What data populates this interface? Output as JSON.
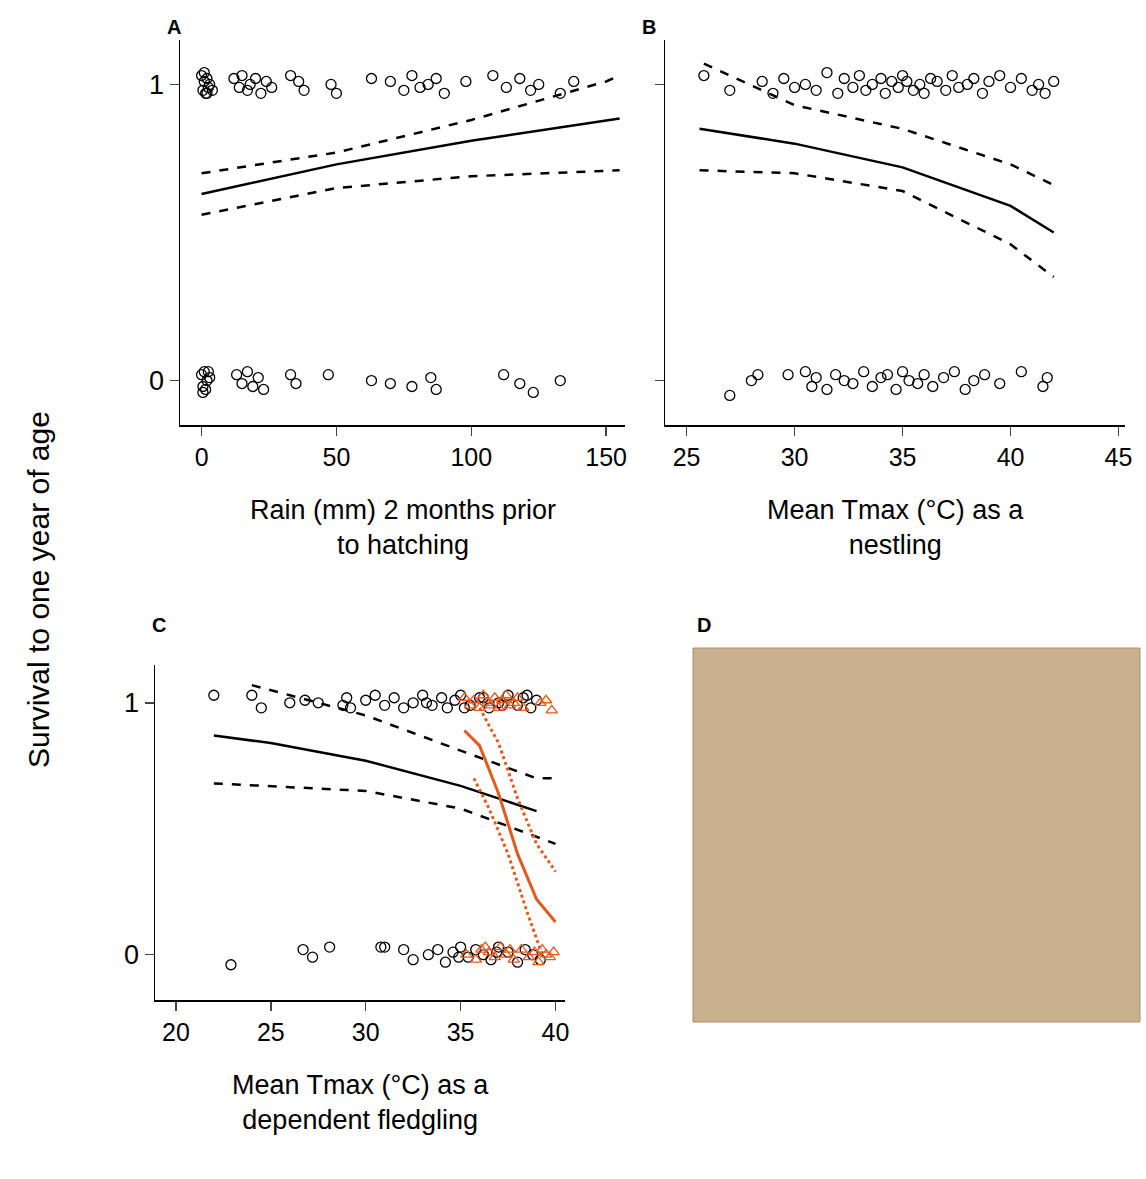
{
  "ylabel": "Survival to one year of age",
  "photo": {
    "panel": "D"
  },
  "chart_data": [
    {
      "panel": "A",
      "type": "scatter",
      "xlabel": "Rain (mm) 2 months prior to hatching",
      "xlim": [
        -8,
        157
      ],
      "xticks": [
        0,
        50,
        100,
        150
      ],
      "ylim": [
        -0.15,
        1.15
      ],
      "yticks": [
        0,
        1
      ],
      "grid": false,
      "series": [
        {
          "type": "scatter",
          "marker": "circle-open",
          "color": "#000000",
          "x": [
            0,
            0.5,
            1,
            1.5,
            2,
            2.5,
            3,
            4,
            1,
            2,
            12,
            14,
            15,
            17,
            18,
            20,
            22,
            24,
            26,
            33,
            36,
            38,
            48,
            50,
            63,
            70,
            75,
            78,
            81,
            84,
            87,
            90,
            98,
            108,
            113,
            118,
            122,
            125,
            133,
            138
          ],
          "values": [
            1.03,
            0.98,
            1.01,
            0.97,
            1.02,
            0.99,
            1.0,
            0.98,
            1.04,
            0.97,
            1.02,
            0.99,
            1.03,
            0.98,
            1.0,
            1.02,
            0.97,
            1.01,
            0.99,
            1.03,
            1.01,
            0.98,
            1.0,
            0.97,
            1.02,
            1.01,
            0.98,
            1.03,
            0.99,
            1.0,
            1.02,
            0.97,
            1.01,
            1.03,
            0.99,
            1.02,
            0.98,
            1.0,
            0.97,
            1.01
          ]
        },
        {
          "type": "scatter",
          "marker": "circle-open",
          "color": "#000000",
          "x": [
            0,
            0.5,
            1,
            1.5,
            2,
            3,
            0.5,
            2.5,
            13,
            15,
            17,
            19,
            21,
            23,
            33,
            35,
            47,
            63,
            70,
            78,
            85,
            87,
            112,
            118,
            123,
            133
          ],
          "values": [
            0.02,
            -0.02,
            0.03,
            -0.03,
            0.0,
            0.01,
            -0.04,
            0.03,
            0.02,
            -0.01,
            0.03,
            -0.02,
            0.01,
            -0.03,
            0.02,
            -0.01,
            0.02,
            0.0,
            -0.01,
            -0.02,
            0.01,
            -0.03,
            0.02,
            -0.01,
            -0.04,
            0.0
          ]
        },
        {
          "type": "line",
          "line_style": "solid",
          "color": "#000000",
          "x": [
            0,
            50,
            100,
            150,
            155
          ],
          "values": [
            0.63,
            0.73,
            0.81,
            0.88,
            0.885
          ]
        },
        {
          "type": "line",
          "line_style": "dashed",
          "color": "#000000",
          "x": [
            0,
            50,
            100,
            150,
            155
          ],
          "values": [
            0.7,
            0.77,
            0.88,
            1.01,
            1.03
          ]
        },
        {
          "type": "line",
          "line_style": "dashed",
          "color": "#000000",
          "x": [
            0,
            50,
            100,
            150,
            155
          ],
          "values": [
            0.56,
            0.65,
            0.69,
            0.71,
            0.71
          ]
        }
      ]
    },
    {
      "panel": "B",
      "type": "scatter",
      "xlabel": "Mean Tmax (°C) as a nestling",
      "tick_labels": "x",
      "xlim": [
        24,
        45.3
      ],
      "xticks": [
        25,
        30,
        35,
        40,
        45
      ],
      "ylim": [
        -0.15,
        1.15
      ],
      "yticks": [
        0,
        1
      ],
      "grid": false,
      "series": [
        {
          "type": "scatter",
          "marker": "circle-open",
          "color": "#000000",
          "x": [
            25.8,
            27,
            28.5,
            29,
            29.5,
            30,
            30.5,
            31,
            31.5,
            32,
            32.3,
            32.7,
            33,
            33.3,
            33.6,
            34,
            34.2,
            34.5,
            34.8,
            35,
            35.2,
            35.5,
            35.8,
            36,
            36.3,
            36.6,
            37,
            37.3,
            37.6,
            38,
            38.3,
            38.7,
            39,
            39.5,
            40,
            40.5,
            41,
            41.3,
            41.6,
            42
          ],
          "values": [
            1.03,
            0.98,
            1.01,
            0.97,
            1.02,
            0.99,
            1.0,
            0.98,
            1.04,
            0.97,
            1.02,
            0.99,
            1.03,
            0.98,
            1.0,
            1.02,
            0.97,
            1.01,
            0.99,
            1.03,
            1.01,
            0.98,
            1.0,
            0.97,
            1.02,
            1.01,
            0.98,
            1.03,
            0.99,
            1.0,
            1.02,
            0.97,
            1.01,
            1.03,
            0.99,
            1.02,
            0.98,
            1.0,
            0.97,
            1.01
          ]
        },
        {
          "type": "scatter",
          "marker": "circle-open",
          "color": "#000000",
          "x": [
            27,
            28,
            28.3,
            29.7,
            30.5,
            30.8,
            31,
            31.5,
            31.9,
            32.3,
            32.7,
            33.2,
            33.6,
            34,
            34.3,
            34.7,
            35,
            35.3,
            35.7,
            36,
            36.4,
            36.9,
            37.4,
            37.9,
            38.3,
            38.8,
            39.5,
            40.5,
            41.5,
            41.7
          ],
          "values": [
            -0.05,
            0.0,
            0.02,
            0.02,
            0.03,
            -0.02,
            0.01,
            -0.03,
            0.02,
            0.0,
            -0.01,
            0.03,
            -0.02,
            0.01,
            0.02,
            -0.03,
            0.03,
            0.0,
            -0.01,
            0.02,
            -0.02,
            0.01,
            0.03,
            -0.03,
            0.0,
            0.02,
            -0.01,
            0.03,
            -0.02,
            0.01
          ]
        },
        {
          "type": "line",
          "line_style": "solid",
          "color": "#000000",
          "x": [
            25.6,
            30,
            35,
            40,
            42
          ],
          "values": [
            0.85,
            0.8,
            0.72,
            0.59,
            0.5
          ]
        },
        {
          "type": "line",
          "line_style": "dashed",
          "color": "#000000",
          "x": [
            25.8,
            30,
            35,
            40,
            42
          ],
          "values": [
            1.07,
            0.93,
            0.85,
            0.73,
            0.66
          ]
        },
        {
          "type": "line",
          "line_style": "dashed",
          "color": "#000000",
          "x": [
            25.6,
            30,
            35,
            40,
            42
          ],
          "values": [
            0.71,
            0.7,
            0.64,
            0.46,
            0.35
          ]
        }
      ]
    },
    {
      "panel": "C",
      "type": "scatter",
      "xlabel": "Mean Tmax (°C) as a dependent fledgling",
      "xlim": [
        18.9,
        40.5
      ],
      "xticks": [
        20,
        25,
        30,
        35,
        40
      ],
      "ylim": [
        -0.18,
        1.15
      ],
      "yticks": [
        0,
        1
      ],
      "grid": false,
      "series": [
        {
          "type": "scatter",
          "marker": "circle-open",
          "color": "#000000",
          "x": [
            22,
            24,
            24.5,
            26,
            26.8,
            27.5,
            28.8,
            29,
            29.2,
            30,
            30.5,
            31,
            31.5,
            32,
            32.5,
            33,
            33.5,
            34,
            34.3,
            34.7,
            35,
            35.5,
            36,
            36.5,
            37,
            37.5,
            38,
            38.3,
            38.7,
            39,
            33.2,
            35.2,
            36.2,
            37.2,
            38.5
          ],
          "values": [
            1.03,
            1.03,
            0.98,
            1.0,
            1.01,
            1.0,
            0.99,
            1.02,
            0.98,
            1.01,
            1.03,
            0.99,
            1.02,
            0.98,
            1.0,
            1.03,
            0.99,
            1.02,
            0.98,
            1.01,
            1.03,
            0.99,
            1.02,
            0.98,
            1.0,
            1.03,
            0.99,
            1.02,
            0.98,
            1.01,
            1.0,
            0.98,
            1.02,
            0.99,
            1.03
          ]
        },
        {
          "type": "scatter",
          "marker": "circle-open",
          "color": "#000000",
          "x": [
            22.9,
            26.7,
            27.2,
            28.1,
            30.8,
            31,
            32,
            32.5,
            33.3,
            33.8,
            34.2,
            34.6,
            35,
            35.4,
            35.8,
            36.2,
            36.6,
            37,
            37.5,
            38,
            38.4,
            38.8,
            39.2,
            36.9,
            34.9
          ],
          "values": [
            -0.04,
            0.02,
            -0.01,
            0.03,
            0.03,
            0.03,
            0.02,
            -0.02,
            0.0,
            0.02,
            -0.03,
            0.01,
            0.03,
            -0.01,
            0.02,
            0.0,
            -0.02,
            0.03,
            0.01,
            -0.03,
            0.02,
            0.0,
            -0.02,
            0.01,
            -0.01
          ]
        },
        {
          "type": "scatter",
          "marker": "triangle-up-open",
          "color": "#e45a1e",
          "x": [
            35.2,
            35.5,
            35.7,
            36,
            36.2,
            36.4,
            36.6,
            36.8,
            37,
            37.2,
            37.4,
            37.6,
            37.8,
            38,
            38.3,
            39.2,
            39.5,
            39.8
          ],
          "values": [
            1.02,
            0.99,
            1.01,
            0.98,
            1.03,
            1.0,
            0.99,
            1.02,
            0.98,
            1.01,
            1.03,
            0.99,
            1.0,
            1.02,
            0.98,
            1.0,
            1.01,
            0.97
          ]
        },
        {
          "type": "scatter",
          "marker": "triangle-up-open",
          "color": "#e45a1e",
          "x": [
            35.3,
            35.8,
            36.1,
            36.5,
            36.8,
            37.1,
            37.4,
            37.8,
            38.2,
            38.6,
            38.9,
            39.1,
            39.3,
            39.5,
            39.7,
            39.9,
            36.3,
            37.6
          ],
          "values": [
            0.0,
            -0.02,
            0.02,
            0.01,
            -0.01,
            0.03,
            0.0,
            -0.02,
            0.02,
            -0.01,
            0.01,
            -0.03,
            0.02,
            0.0,
            -0.01,
            0.01,
            0.03,
            0.02
          ]
        },
        {
          "type": "line",
          "line_style": "solid",
          "color": "#000000",
          "x": [
            22,
            25,
            30,
            35,
            39
          ],
          "values": [
            0.87,
            0.84,
            0.77,
            0.67,
            0.57
          ]
        },
        {
          "type": "line",
          "line_style": "dashed",
          "color": "#000000",
          "x": [
            24,
            30,
            35,
            39,
            40
          ],
          "values": [
            1.07,
            0.95,
            0.81,
            0.7,
            0.7
          ]
        },
        {
          "type": "line",
          "line_style": "dashed",
          "color": "#000000",
          "x": [
            22,
            30,
            35,
            40
          ],
          "values": [
            0.68,
            0.65,
            0.58,
            0.44
          ]
        },
        {
          "type": "line",
          "line_style": "solid",
          "color": "#e45a1e",
          "x": [
            35.2,
            36,
            37,
            38,
            39,
            40
          ],
          "values": [
            0.89,
            0.83,
            0.64,
            0.4,
            0.22,
            0.13
          ]
        },
        {
          "type": "line",
          "line_style": "dotted",
          "color": "#e45a1e",
          "x": [
            36,
            37,
            38,
            39,
            40
          ],
          "values": [
            0.98,
            0.84,
            0.62,
            0.44,
            0.33
          ]
        },
        {
          "type": "line",
          "line_style": "dotted",
          "color": "#e45a1e",
          "x": [
            35.7,
            36.5,
            37.5,
            38.5,
            39.3
          ],
          "values": [
            0.7,
            0.58,
            0.4,
            0.17,
            0.0
          ]
        }
      ]
    }
  ]
}
